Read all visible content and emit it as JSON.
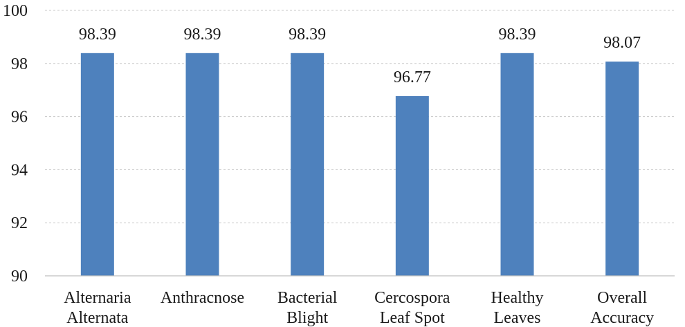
{
  "chart_data": {
    "type": "bar",
    "categories": [
      [
        "Alternaria",
        "Alternata"
      ],
      [
        "Anthracnose"
      ],
      [
        "Bacterial",
        "Blight"
      ],
      [
        "Cercospora",
        "Leaf Spot"
      ],
      [
        "Healthy",
        "Leaves"
      ],
      [
        "Overall",
        "Accuracy"
      ]
    ],
    "values": [
      98.39,
      98.39,
      98.39,
      96.77,
      98.39,
      98.07
    ],
    "data_labels": [
      "98.39",
      "98.39",
      "98.39",
      "96.77",
      "98.39",
      "98.07"
    ],
    "yticks": [
      "90",
      "92",
      "94",
      "96",
      "98",
      "100"
    ],
    "ylim": [
      90,
      100
    ],
    "grid": true,
    "bar_color": "#4e81bd"
  }
}
